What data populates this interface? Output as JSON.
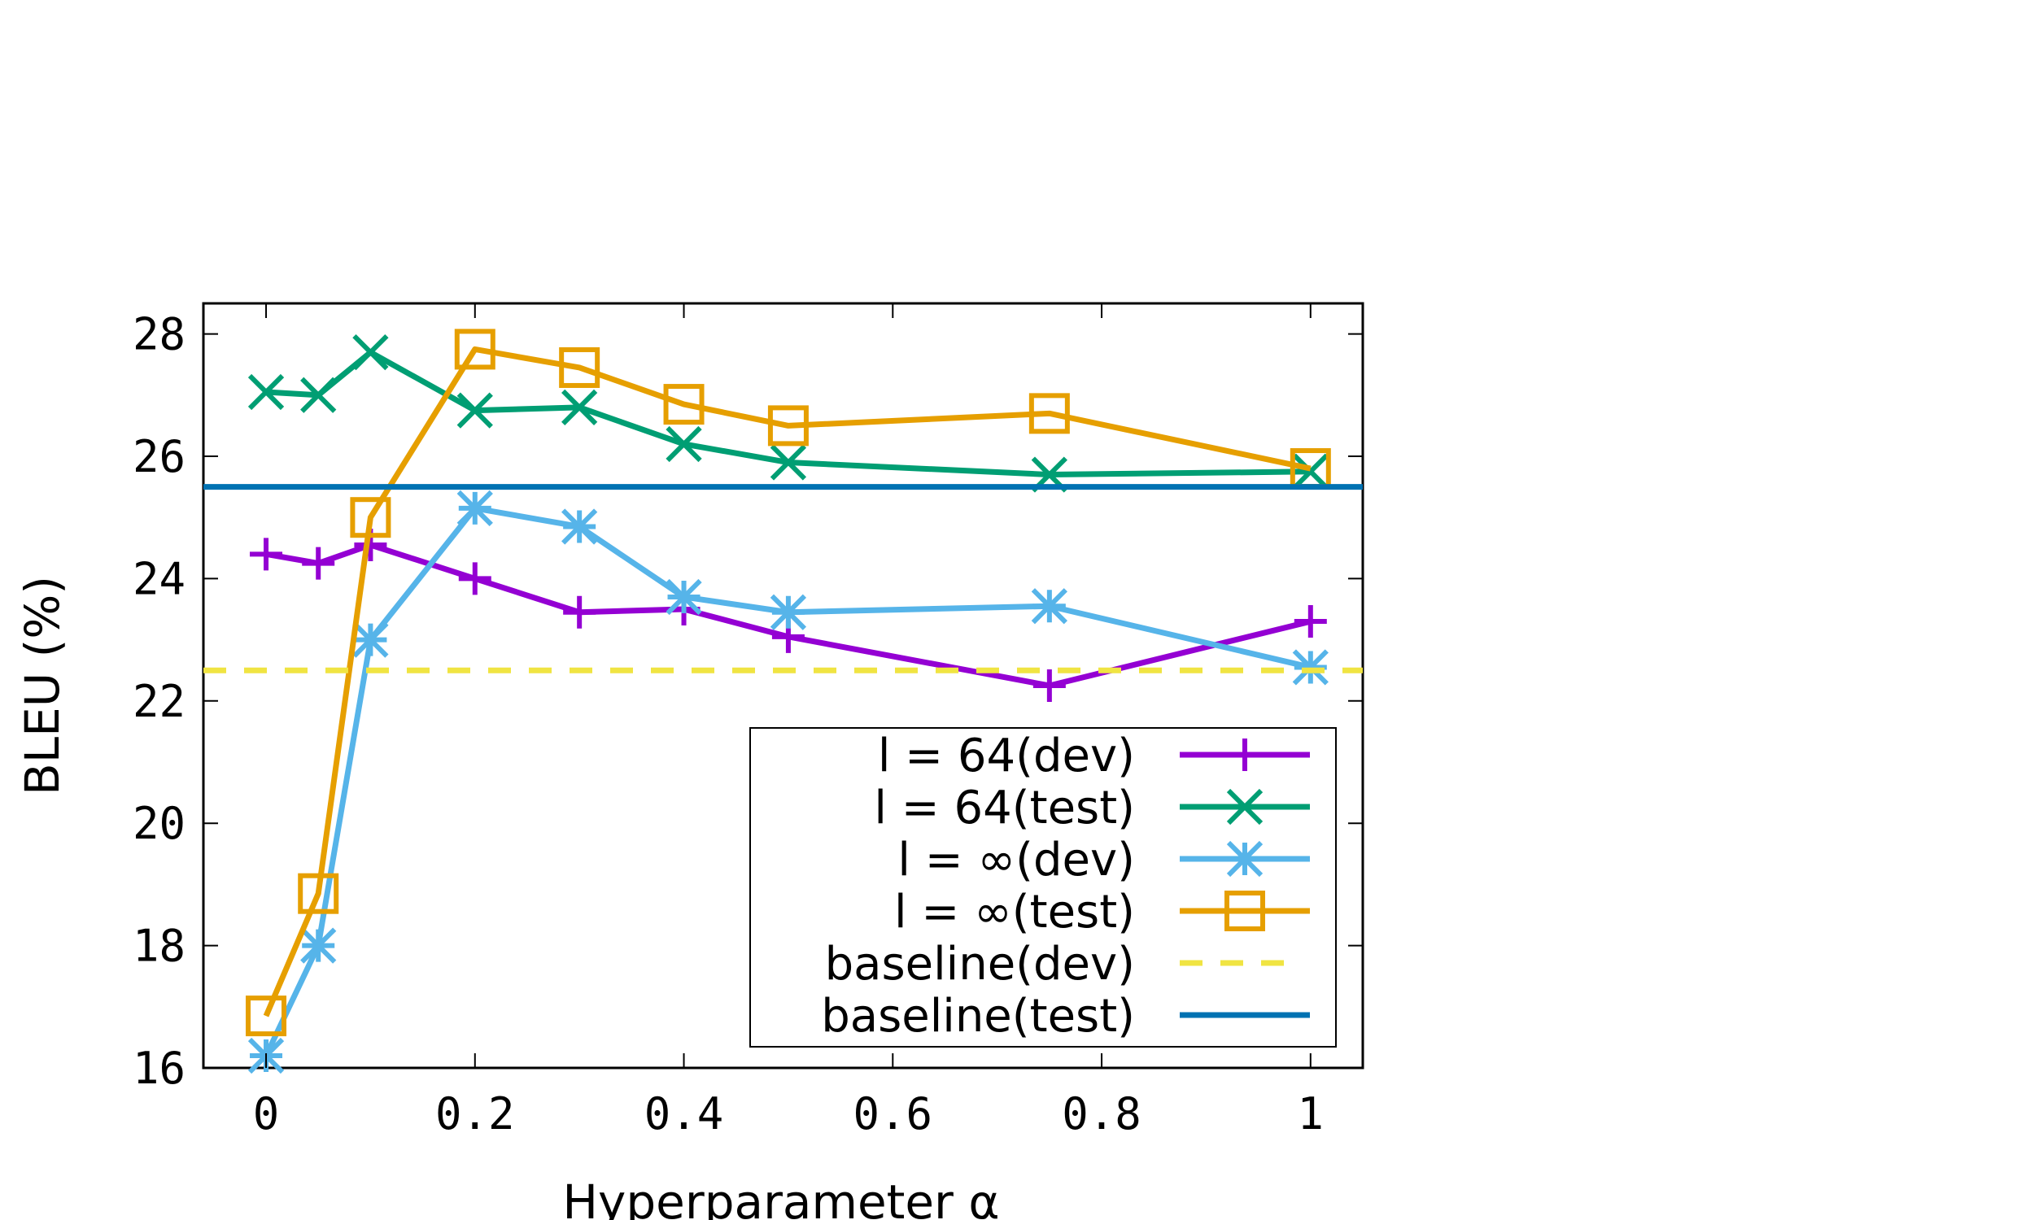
{
  "chart_data": {
    "type": "line",
    "xlabel": "Hyperparameter α",
    "ylabel": "BLEU (%)",
    "xlim": [
      -0.06,
      1.05
    ],
    "ylim": [
      16,
      28.5
    ],
    "xticks": [
      "0",
      "0.2",
      "0.4",
      "0.6",
      "0.8",
      "1"
    ],
    "yticks": [
      "16",
      "18",
      "20",
      "22",
      "24",
      "26",
      "28"
    ],
    "legend_position": "bottom-right",
    "grid": false,
    "series": [
      {
        "name": "l = 64(dev)",
        "color": "#9400d3",
        "marker": "plus",
        "style": "solid",
        "x": [
          0,
          0.05,
          0.1,
          0.2,
          0.3,
          0.4,
          0.5,
          0.75,
          1
        ],
        "y": [
          24.4,
          24.25,
          24.55,
          24.0,
          23.45,
          23.5,
          23.05,
          22.25,
          23.3
        ]
      },
      {
        "name": "l = 64(test)",
        "color": "#009e73",
        "marker": "x",
        "style": "solid",
        "x": [
          0,
          0.05,
          0.1,
          0.2,
          0.3,
          0.4,
          0.5,
          0.75,
          1
        ],
        "y": [
          27.05,
          27.0,
          27.7,
          26.75,
          26.8,
          26.2,
          25.9,
          25.7,
          25.75
        ]
      },
      {
        "name": "l = ∞(dev)",
        "color": "#56b4e9",
        "marker": "star",
        "style": "solid",
        "x": [
          0,
          0.05,
          0.1,
          0.2,
          0.3,
          0.4,
          0.5,
          0.75,
          1
        ],
        "y": [
          16.2,
          18.0,
          23.0,
          25.15,
          24.85,
          23.7,
          23.45,
          23.55,
          22.55
        ]
      },
      {
        "name": "l = ∞(test)",
        "color": "#e69f00",
        "marker": "square",
        "style": "solid",
        "x": [
          0,
          0.05,
          0.1,
          0.2,
          0.3,
          0.4,
          0.5,
          0.75,
          1
        ],
        "y": [
          16.85,
          18.85,
          25.0,
          27.75,
          27.45,
          26.85,
          26.5,
          26.7,
          25.8
        ]
      },
      {
        "name": "baseline(dev)",
        "color": "#f0e442",
        "marker": "none",
        "style": "dashed",
        "y_const": 22.5
      },
      {
        "name": "baseline(test)",
        "color": "#0072b2",
        "marker": "none",
        "style": "solid",
        "y_const": 25.5
      }
    ]
  }
}
